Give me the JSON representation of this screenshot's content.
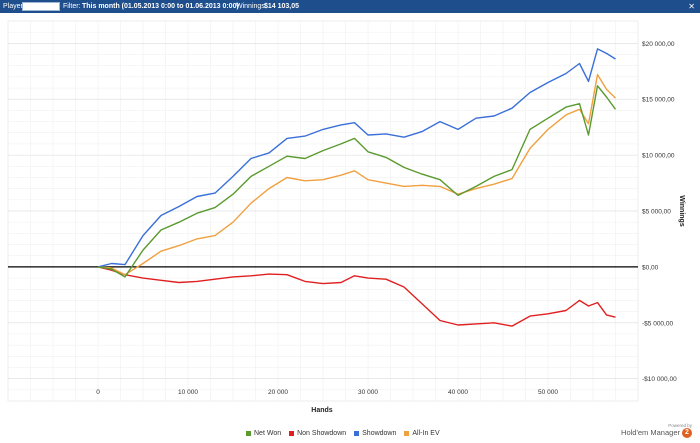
{
  "filter_bar": {
    "player_label": "Player:",
    "player_value": "",
    "filter_label": "Filter:",
    "filter_value": "This month (01.05.2013 0:00 to 01.06.2013 0:00)",
    "winnings_label": "Winnings:",
    "winnings_value": "$14 103,05",
    "close_glyph": "✕"
  },
  "branding": {
    "powered_by": "Powered by",
    "product": "Hold'em Manager",
    "badge": "2"
  },
  "chart_data": {
    "type": "line",
    "xlabel": "Hands",
    "ylabel": "Winnings",
    "xlim": [
      -10000,
      60000
    ],
    "ylim": [
      -12000,
      22000
    ],
    "x_ticks": [
      0,
      10000,
      20000,
      30000,
      40000,
      50000
    ],
    "x_tick_labels": [
      "0",
      "10 000",
      "20 000",
      "30 000",
      "40 000",
      "50 000"
    ],
    "y_ticks": [
      20000,
      15000,
      10000,
      5000,
      0,
      -5000,
      -10000
    ],
    "y_tick_labels": [
      "$20 000,00",
      "$15 000,00",
      "$10 000,00",
      "$5 000,00",
      "$0,00",
      "-$5 000,00",
      "-$10 000,00"
    ],
    "grid": true,
    "legend_position": "bottom",
    "x": [
      0,
      1500,
      3000,
      5000,
      7000,
      9000,
      11000,
      13000,
      15000,
      17000,
      19000,
      21000,
      23000,
      25000,
      27000,
      28500,
      30000,
      32000,
      34000,
      36000,
      38000,
      40000,
      42000,
      44000,
      46000,
      48000,
      50000,
      52000,
      53500,
      54500,
      55500,
      56500,
      57500
    ],
    "series": [
      {
        "name": "Net Won",
        "color": "#5a9a2e",
        "values": [
          0,
          -200,
          -900,
          1500,
          3300,
          4000,
          4800,
          5300,
          6500,
          8100,
          9000,
          9900,
          9700,
          10400,
          11000,
          11500,
          10300,
          9800,
          8900,
          8300,
          7800,
          6400,
          7200,
          8100,
          8700,
          12300,
          13300,
          14300,
          14600,
          11800,
          16200,
          15200,
          14100
        ]
      },
      {
        "name": "Non Showdown",
        "color": "#e02020",
        "values": [
          0,
          -300,
          -700,
          -1000,
          -1200,
          -1400,
          -1300,
          -1100,
          -900,
          -800,
          -650,
          -700,
          -1300,
          -1500,
          -1400,
          -800,
          -1000,
          -1100,
          -1800,
          -3300,
          -4800,
          -5200,
          -5100,
          -5000,
          -5300,
          -4400,
          -4200,
          -3900,
          -3000,
          -3500,
          -3200,
          -4300,
          -4500
        ]
      },
      {
        "name": "Showdown",
        "color": "#3a6fd8",
        "values": [
          0,
          300,
          200,
          2800,
          4600,
          5400,
          6300,
          6600,
          8100,
          9700,
          10200,
          11500,
          11700,
          12300,
          12700,
          12900,
          11800,
          11900,
          11600,
          12100,
          13000,
          12300,
          13300,
          13500,
          14200,
          15600,
          16500,
          17300,
          18200,
          16600,
          19500,
          19100,
          18600
        ]
      },
      {
        "name": "All-In EV",
        "color": "#f0a040",
        "values": [
          0,
          -100,
          -700,
          300,
          1400,
          1900,
          2500,
          2800,
          4000,
          5700,
          7000,
          8000,
          7700,
          7800,
          8200,
          8600,
          7800,
          7500,
          7200,
          7300,
          7200,
          6500,
          7000,
          7400,
          7900,
          10600,
          12300,
          13600,
          14100,
          12800,
          17200,
          15900,
          15100
        ]
      }
    ]
  }
}
